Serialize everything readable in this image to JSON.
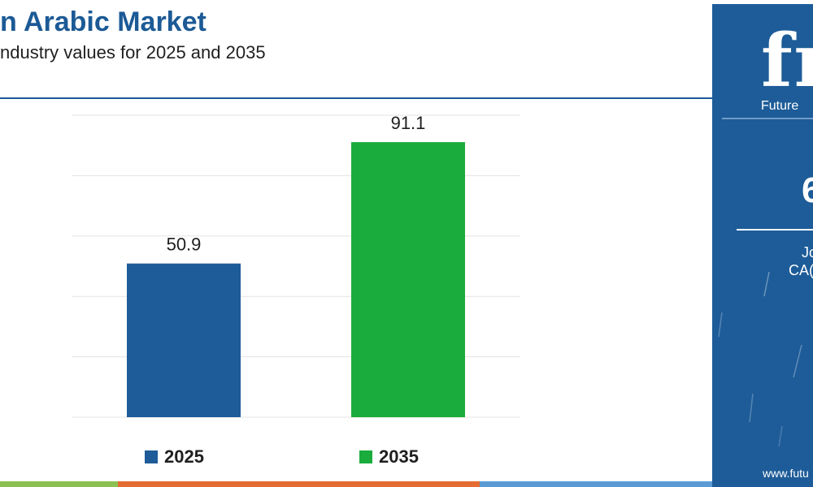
{
  "header": {
    "title": "n Arabic Market",
    "subtitle": "ndustry values for 2025 and 2035"
  },
  "chart_data": {
    "type": "bar",
    "categories": [
      "2025",
      "2035"
    ],
    "values": [
      50.9,
      91.1
    ],
    "data_labels": [
      "50.9",
      "91.1"
    ],
    "ylim": [
      0,
      100
    ],
    "grid": true,
    "legend": "bottom",
    "colors": [
      "#1d5c98",
      "#1aac3c"
    ]
  },
  "legend": {
    "items": [
      {
        "label": "2025",
        "color": "#1d5c98"
      },
      {
        "label": "2035",
        "color": "#1aac3c"
      }
    ]
  },
  "side_panel": {
    "logo": "fr",
    "logo_text": "Future",
    "big_value": "6",
    "line1": "Jo",
    "line2": "CA(",
    "url": "www.futu",
    "background": "#1d5c98"
  },
  "bottom_strip": [
    {
      "color": "#8cc152"
    },
    {
      "color": "#e46b32"
    },
    {
      "color": "#5b9bd5"
    }
  ]
}
